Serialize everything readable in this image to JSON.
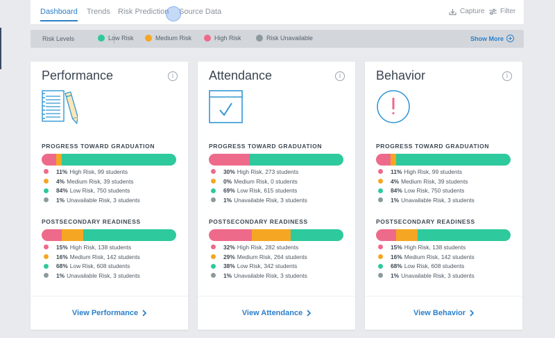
{
  "nav": {
    "tabs": [
      {
        "label": "Dashboard",
        "active": true
      },
      {
        "label": "Trends",
        "active": false
      },
      {
        "label": "Risk Prediction",
        "active": false
      },
      {
        "label": "Source Data",
        "active": false
      }
    ],
    "capture_label": "Capture",
    "filter_label": "Filter"
  },
  "legend": {
    "title": "Risk Levels",
    "items": [
      {
        "label": "Low Risk",
        "color": "#2ec99c"
      },
      {
        "label": "Medium Risk",
        "color": "#f5a623"
      },
      {
        "label": "High Risk",
        "color": "#ee6a8a"
      },
      {
        "label": "Risk Unavailable",
        "color": "#8c9a9e"
      }
    ],
    "show_more": "Show More"
  },
  "colors": {
    "high": "#ee6a8a",
    "medium": "#f5a623",
    "low": "#2ec99c",
    "unavailable": "#8c9a9e",
    "accent": "#2b7fc8"
  },
  "cards": [
    {
      "title": "Performance",
      "icon": "notebook-pencil-icon",
      "sections": [
        {
          "title": "PROGRESS TOWARD GRADUATION",
          "stats": [
            {
              "pct": "11%",
              "text": "High Risk, 99 students",
              "level": "high"
            },
            {
              "pct": "4%",
              "text": "Medium Risk, 39 students",
              "level": "medium"
            },
            {
              "pct": "84%",
              "text": "Low Risk, 750 students",
              "level": "low"
            },
            {
              "pct": "1%",
              "text": "Unavailable Risk, 3 students",
              "level": "unavailable"
            }
          ]
        },
        {
          "title": "POSTSECONDARY READINESS",
          "stats": [
            {
              "pct": "15%",
              "text": "High Risk, 138 students",
              "level": "high"
            },
            {
              "pct": "16%",
              "text": "Medium Risk, 142 students",
              "level": "medium"
            },
            {
              "pct": "68%",
              "text": "Low Risk, 608 students",
              "level": "low"
            },
            {
              "pct": "1%",
              "text": "Unavailable Risk, 3 students",
              "level": "unavailable"
            }
          ]
        }
      ],
      "link": "View Performance"
    },
    {
      "title": "Attendance",
      "icon": "calendar-check-icon",
      "sections": [
        {
          "title": "PROGRESS TOWARD GRADUATION",
          "stats": [
            {
              "pct": "30%",
              "text": "High Risk, 273 students",
              "level": "high"
            },
            {
              "pct": "0%",
              "text": "Medium Risk, 0 students",
              "level": "medium"
            },
            {
              "pct": "69%",
              "text": "Low Risk, 615 students",
              "level": "low"
            },
            {
              "pct": "1%",
              "text": "Unavailable Risk, 3 students",
              "level": "unavailable"
            }
          ]
        },
        {
          "title": "POSTSECONDARY READINESS",
          "stats": [
            {
              "pct": "32%",
              "text": "High Risk, 282 students",
              "level": "high"
            },
            {
              "pct": "29%",
              "text": "Medium Risk, 264 students",
              "level": "medium"
            },
            {
              "pct": "38%",
              "text": "Low Risk, 342 students",
              "level": "low"
            },
            {
              "pct": "1%",
              "text": "Unavailable Risk, 3 students",
              "level": "unavailable"
            }
          ]
        }
      ],
      "link": "View Attendance"
    },
    {
      "title": "Behavior",
      "icon": "exclamation-circle-icon",
      "sections": [
        {
          "title": "PROGRESS TOWARD GRADUATION",
          "stats": [
            {
              "pct": "11%",
              "text": "High Risk, 99 students",
              "level": "high"
            },
            {
              "pct": "4%",
              "text": "Medium Risk, 39 students",
              "level": "medium"
            },
            {
              "pct": "84%",
              "text": "Low Risk, 750 students",
              "level": "low"
            },
            {
              "pct": "1%",
              "text": "Unavailable Risk, 3 students",
              "level": "unavailable"
            }
          ]
        },
        {
          "title": "POSTSECONDARY READINESS",
          "stats": [
            {
              "pct": "15%",
              "text": "High Risk, 138 students",
              "level": "high"
            },
            {
              "pct": "16%",
              "text": "Medium Risk, 142 students",
              "level": "medium"
            },
            {
              "pct": "68%",
              "text": "Low Risk, 608 students",
              "level": "low"
            },
            {
              "pct": "1%",
              "text": "Unavailable Risk, 3 students",
              "level": "unavailable"
            }
          ]
        }
      ],
      "link": "View Behavior"
    }
  ]
}
